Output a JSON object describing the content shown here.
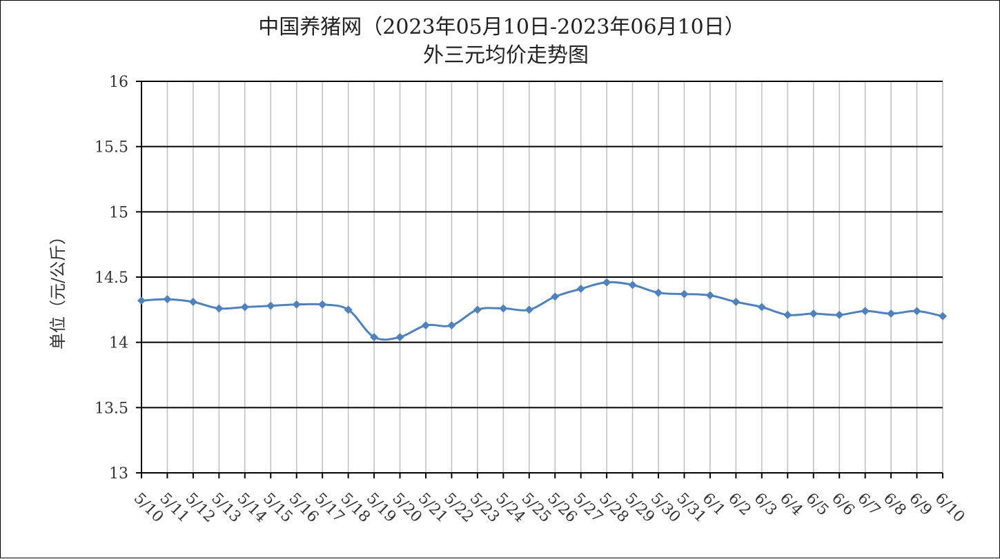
{
  "chart_data": {
    "type": "line",
    "title": "中国养猪网（2023年05月10日-2023年06月10日）",
    "subtitle": "外三元均价走势图",
    "xlabel": "",
    "ylabel": "单位（元/公斤）",
    "ylim": [
      13,
      16
    ],
    "ytick_step": 0.5,
    "ytick_labels": [
      "13",
      "13.5",
      "14",
      "14.5",
      "15",
      "15.5",
      "16"
    ],
    "grid": true,
    "legend": "none",
    "categories": [
      "5/10",
      "5/11",
      "5/12",
      "5/13",
      "5/14",
      "5/15",
      "5/16",
      "5/17",
      "5/18",
      "5/19",
      "5/20",
      "5/21",
      "5/22",
      "5/23",
      "5/24",
      "5/25",
      "5/26",
      "5/27",
      "5/28",
      "5/29",
      "5/30",
      "5/31",
      "6/1",
      "6/2",
      "6/3",
      "6/4",
      "6/5",
      "6/6",
      "6/7",
      "6/8",
      "6/9",
      "6/10"
    ],
    "series": [
      {
        "values": [
          14.32,
          14.33,
          14.31,
          14.26,
          14.27,
          14.28,
          14.29,
          14.29,
          14.25,
          14.04,
          14.04,
          14.13,
          14.13,
          14.25,
          14.26,
          14.25,
          14.35,
          14.41,
          14.46,
          14.44,
          14.38,
          14.37,
          14.36,
          14.31,
          14.27,
          14.21,
          14.22,
          14.21,
          14.24,
          14.22,
          14.24,
          14.2
        ],
        "color": "#4f81bd",
        "marker": "diamond"
      }
    ],
    "colors": {
      "grid": "#000000",
      "vertical_grid": "#bfbfbf",
      "axis": "#000000"
    }
  }
}
